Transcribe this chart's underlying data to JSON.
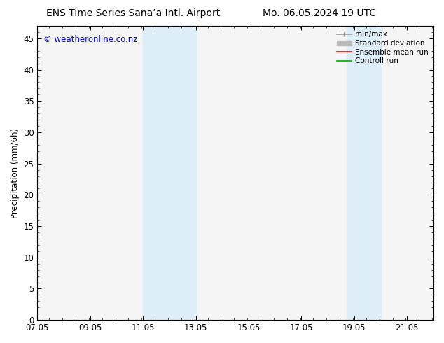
{
  "title_left": "ENS Time Series Sana’a Intl. Airport",
  "title_right": "Mo. 06.05.2024 19 UTC",
  "ylabel": "Precipitation (mm/6h)",
  "watermark": "© weatheronline.co.nz",
  "xmin": 7.05,
  "xmax": 22.05,
  "ymin": 0,
  "ymax": 47,
  "yticks": [
    0,
    5,
    10,
    15,
    20,
    25,
    30,
    35,
    40,
    45
  ],
  "xtick_labels": [
    "07.05",
    "09.05",
    "11.05",
    "13.05",
    "15.05",
    "17.05",
    "19.05",
    "21.05"
  ],
  "xtick_positions": [
    7.05,
    9.05,
    11.05,
    13.05,
    15.05,
    17.05,
    19.05,
    21.05
  ],
  "shaded_bands": [
    {
      "xstart": 11.05,
      "xend": 13.05
    },
    {
      "xstart": 18.75,
      "xend": 20.05
    }
  ],
  "shade_color": "#ddeef8",
  "legend_items": [
    {
      "label": "min/max",
      "color": "#999999",
      "lw": 1.2,
      "ls": "-"
    },
    {
      "label": "Standard deviation",
      "color": "#bbbbbb",
      "lw": 5,
      "ls": "-"
    },
    {
      "label": "Ensemble mean run",
      "color": "#ff0000",
      "lw": 1.2,
      "ls": "-"
    },
    {
      "label": "Controll run",
      "color": "#00aa00",
      "lw": 1.2,
      "ls": "-"
    }
  ],
  "background_color": "#ffffff",
  "plot_bg_color": "#f5f5f5",
  "title_fontsize": 10,
  "axis_fontsize": 8.5,
  "ylabel_fontsize": 8.5,
  "watermark_color": "#0000cc",
  "watermark_fontsize": 8.5
}
